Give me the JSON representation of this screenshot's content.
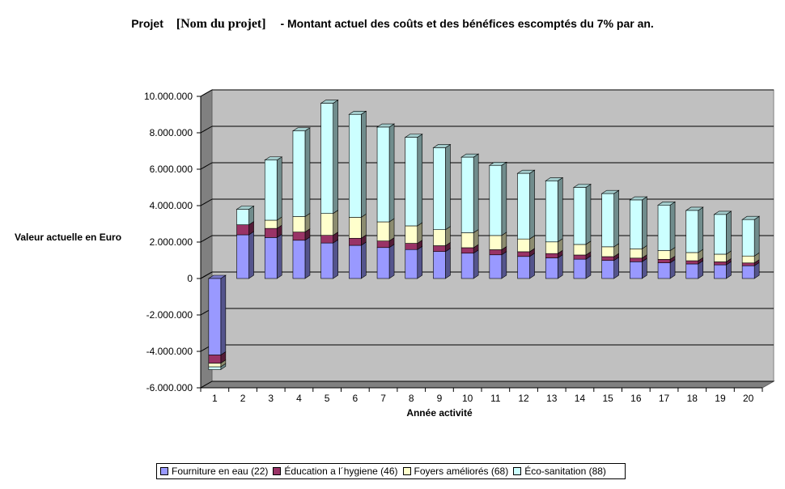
{
  "title": {
    "prefix": "Projet",
    "project_name": "[Nom du projet]",
    "suffix": "- Montant actuel des coûts et des bénéfices escomptés du 7% par an."
  },
  "chart_data": {
    "type": "bar",
    "stacked": true,
    "three_d": true,
    "xlabel": "Année activité",
    "ylabel": "Valeur actuelle en Euro",
    "ylim": [
      -6000000,
      10000000
    ],
    "yticks": [
      10000000,
      8000000,
      6000000,
      4000000,
      2000000,
      0,
      -2000000,
      -4000000,
      -6000000
    ],
    "ytick_labels": [
      "10.000.000",
      "8.000.000",
      "6.000.000",
      "4.000.000",
      "2.000.000",
      "0",
      "-2.000.000",
      "-4.000.000",
      "-6.000.000"
    ],
    "categories": [
      "1",
      "2",
      "3",
      "4",
      "5",
      "6",
      "7",
      "8",
      "9",
      "10",
      "11",
      "12",
      "13",
      "14",
      "15",
      "16",
      "17",
      "18",
      "19",
      "20"
    ],
    "grid": true,
    "legend_position": "bottom",
    "series": [
      {
        "name": "Fourniture en eau (22)",
        "color": "#9999ff",
        "values": [
          -4200000,
          2400000,
          2250000,
          2100000,
          1950000,
          1820000,
          1700000,
          1590000,
          1480000,
          1390000,
          1300000,
          1210000,
          1130000,
          1060000,
          990000,
          920000,
          860000,
          800000,
          750000,
          700000
        ]
      },
      {
        "name": "Éducation a l´hygiene (46)",
        "color": "#993366",
        "values": [
          -450000,
          550000,
          500000,
          450000,
          420000,
          390000,
          360000,
          340000,
          320000,
          300000,
          280000,
          260000,
          240000,
          230000,
          210000,
          200000,
          190000,
          175000,
          165000,
          155000
        ]
      },
      {
        "name": "Foyers améliorés (68)",
        "color": "#ffffcc",
        "values": [
          -200000,
          0,
          450000,
          850000,
          1200000,
          1150000,
          1050000,
          960000,
          880000,
          820000,
          780000,
          700000,
          640000,
          580000,
          540000,
          510000,
          480000,
          450000,
          420000,
          380000
        ]
      },
      {
        "name": "Éco-sanitation (88)",
        "color": "#ccffff",
        "values": [
          -150000,
          850000,
          3300000,
          4700000,
          6050000,
          5650000,
          5200000,
          4860000,
          4500000,
          4150000,
          3850000,
          3600000,
          3350000,
          3130000,
          2920000,
          2680000,
          2500000,
          2310000,
          2180000,
          2000000
        ]
      }
    ]
  }
}
